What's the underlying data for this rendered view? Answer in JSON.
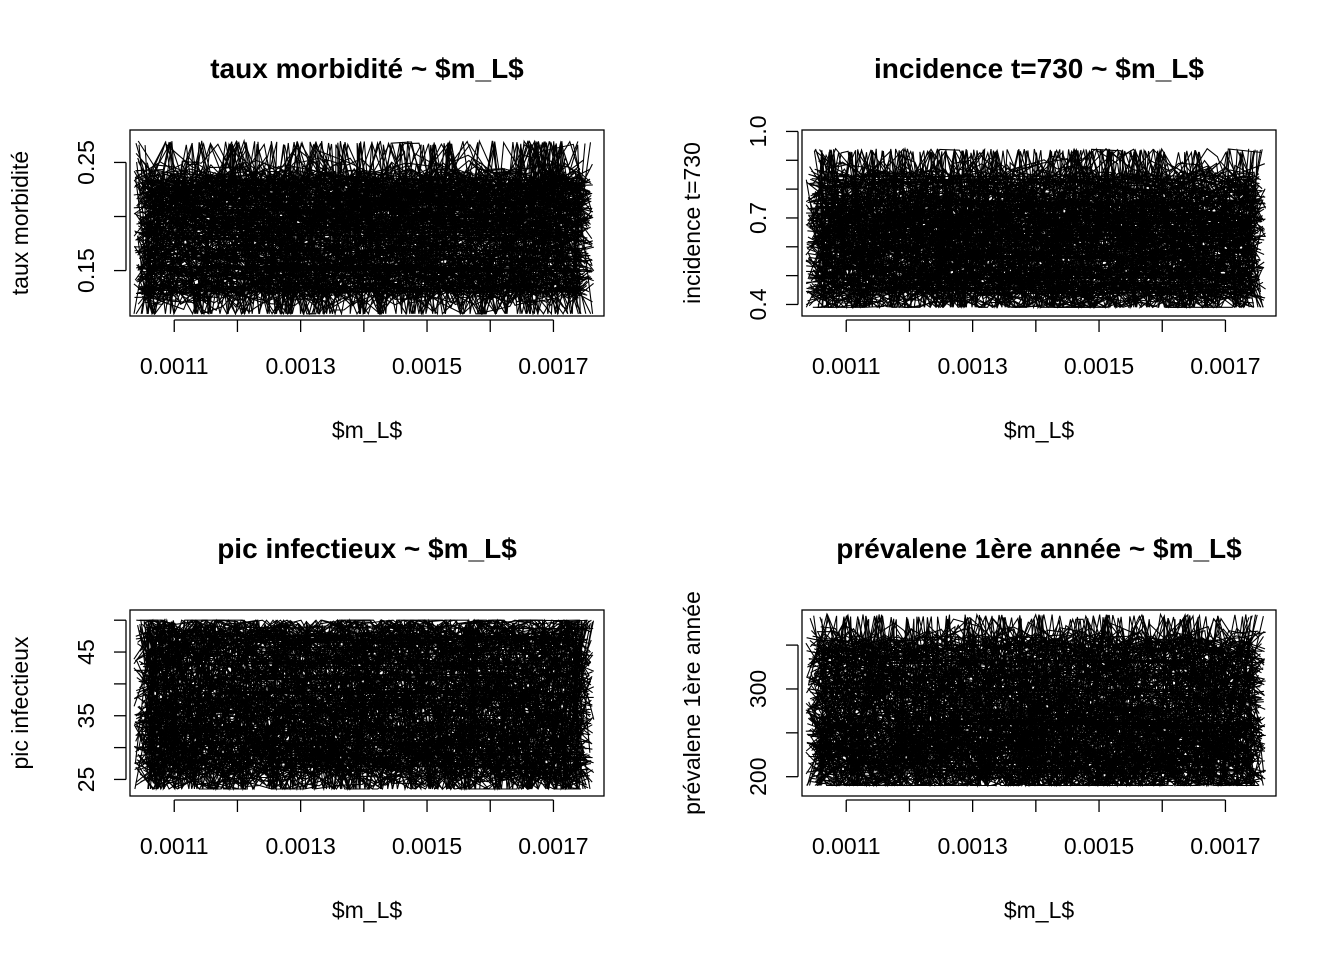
{
  "chart_data": [
    {
      "type": "line",
      "title": "taux morbidité ~ $m_L$",
      "xlabel": "$m_L$",
      "ylabel": "taux morbidité",
      "xticks": [
        0.0011,
        0.0013,
        0.0015,
        0.0017
      ],
      "xtick_labels": [
        "0.0011",
        "0.0013",
        "0.0015",
        "0.0017"
      ],
      "xlim": [
        0.00103,
        0.00178
      ],
      "yticks": [
        0.15,
        0.2,
        0.25
      ],
      "ytick_labels": [
        "0.15",
        "",
        "0.25"
      ],
      "ylim": [
        0.108,
        0.28
      ],
      "series_summary": {
        "x_range": [
          0.00105,
          0.00175
        ],
        "band": [
          0.13,
          0.24
        ],
        "spike_range": [
          0.11,
          0.27
        ]
      },
      "grid": false,
      "legend": "none"
    },
    {
      "type": "line",
      "title": "incidence t=730 ~ $m_L$",
      "xlabel": "$m_L$",
      "ylabel": "incidence t=730",
      "xticks": [
        0.0011,
        0.0013,
        0.0015,
        0.0017
      ],
      "xtick_labels": [
        "0.0011",
        "0.0013",
        "0.0015",
        "0.0017"
      ],
      "xlim": [
        0.00103,
        0.00178
      ],
      "yticks": [
        0.4,
        0.5,
        0.6,
        0.7,
        0.8,
        0.9,
        1.0
      ],
      "ytick_labels": [
        "0.4",
        "",
        "",
        "0.7",
        "",
        "",
        "1.0"
      ],
      "ylim": [
        0.36,
        1.005
      ],
      "series_summary": {
        "x_range": [
          0.00105,
          0.00175
        ],
        "band": [
          0.42,
          0.85
        ],
        "spike_range": [
          0.39,
          0.94
        ]
      },
      "grid": false,
      "legend": "none"
    },
    {
      "type": "line",
      "title": "pic infectieux ~ $m_L$",
      "xlabel": "$m_L$",
      "ylabel": "pic infectieux",
      "xticks": [
        0.0011,
        0.0013,
        0.0015,
        0.0017
      ],
      "xtick_labels": [
        "0.0011",
        "0.0013",
        "0.0015",
        "0.0017"
      ],
      "xlim": [
        0.00103,
        0.00178
      ],
      "yticks": [
        25,
        30,
        35,
        40,
        45,
        50
      ],
      "ytick_labels": [
        "25",
        "",
        "35",
        "",
        "45",
        ""
      ],
      "ylim": [
        22.4,
        51.6
      ],
      "series_summary": {
        "x_range": [
          0.00105,
          0.00175
        ],
        "band": [
          25,
          49
        ],
        "spike_range": [
          23.5,
          50
        ]
      },
      "grid": false,
      "legend": "none"
    },
    {
      "type": "line",
      "title": "prévalene 1ère année ~ $m_L$",
      "xlabel": "$m_L$",
      "ylabel": "prévalene 1ère année",
      "xticks": [
        0.0011,
        0.0013,
        0.0015,
        0.0017
      ],
      "xtick_labels": [
        "0.0011",
        "0.0013",
        "0.0015",
        "0.0017"
      ],
      "xlim": [
        0.00103,
        0.00178
      ],
      "yticks": [
        200,
        250,
        300,
        350
      ],
      "ytick_labels": [
        "200",
        "",
        "300",
        ""
      ],
      "ylim": [
        178,
        390
      ],
      "series_summary": {
        "x_range": [
          0.00105,
          0.00175
        ],
        "band": [
          195,
          355
        ],
        "spike_range": [
          190,
          385
        ]
      },
      "grid": false,
      "legend": "none"
    }
  ]
}
